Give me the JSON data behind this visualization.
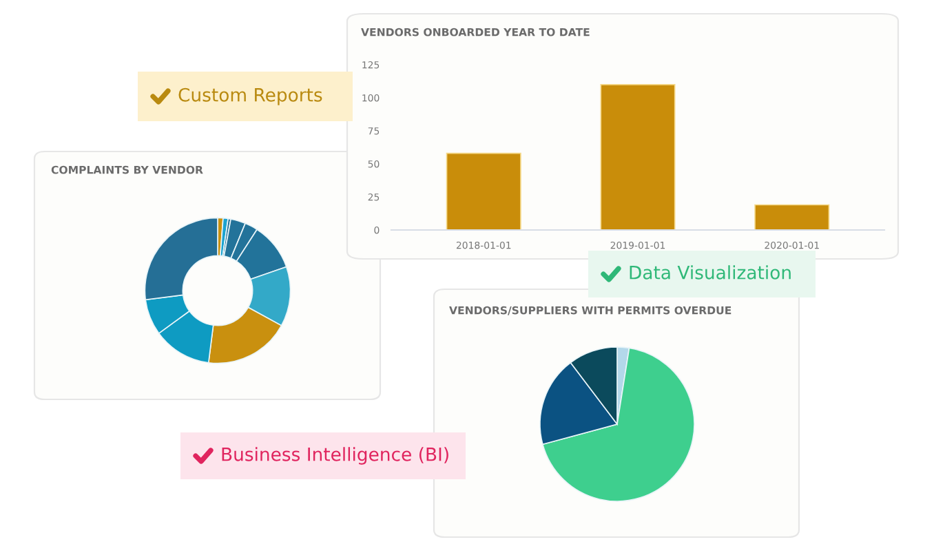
{
  "chart_data": [
    {
      "type": "bar",
      "title": "VENDORS ONBOARDED YEAR TO DATE",
      "categories": [
        "2018-01-01",
        "2019-01-01",
        "2020-01-01"
      ],
      "values": [
        58,
        110,
        19
      ],
      "color": "#c98d0a",
      "ylim": [
        0,
        125
      ],
      "yticks": [
        0,
        25,
        50,
        75,
        100,
        125
      ],
      "grid": false
    },
    {
      "type": "donut",
      "title": "COMPLAINTS BY VENDOR",
      "categories": [
        null,
        null,
        null,
        null,
        null,
        null,
        null,
        null,
        null,
        null,
        null
      ],
      "values": [
        1.2,
        1.1,
        0.6,
        3.3,
        2.9,
        10.6,
        13.3,
        19,
        13,
        8,
        27
      ],
      "colors": [
        "#c9900f",
        "#1ba3d0",
        "#23739a",
        "#23739a",
        "#23739a",
        "#22739a",
        "#33a9c8",
        "#c9900f",
        "#0e9bc2",
        "#0e9bc2",
        "#256f96"
      ]
    },
    {
      "type": "pie",
      "title": "VENDORS/SUPPLIERS WITH PERMITS OVERDUE",
      "categories": [
        null,
        null,
        null,
        null
      ],
      "values": [
        2.5,
        68.3,
        18.9,
        10.3
      ],
      "colors": [
        "#b3d8ea",
        "#3ecf8e",
        "#0b5282",
        "#0b4a5c"
      ]
    },
    {
      "type": "other",
      "annotations": [
        "Custom Reports",
        "Data Visualization",
        "Business Intelligence (BI)"
      ]
    }
  ]
}
